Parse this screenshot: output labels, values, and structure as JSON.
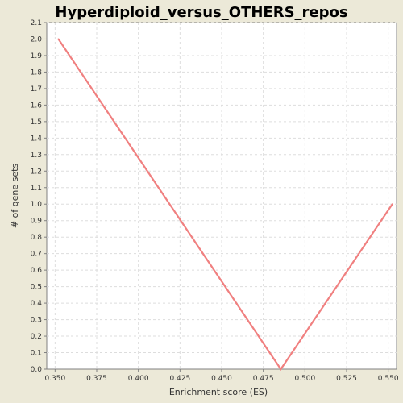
{
  "chart_data": {
    "type": "line",
    "title": "Hyperdiploid_versus_OTHERS_repos",
    "xlabel": "Enrichment score (ES)",
    "ylabel": "# of gene sets",
    "xlim": [
      0.345,
      0.555
    ],
    "ylim": [
      0.0,
      2.1
    ],
    "x_ticks": [
      "0.350",
      "0.375",
      "0.400",
      "0.425",
      "0.450",
      "0.475",
      "0.500",
      "0.525",
      "0.550"
    ],
    "x_tick_values": [
      0.35,
      0.375,
      0.4,
      0.425,
      0.45,
      0.475,
      0.5,
      0.525,
      0.55
    ],
    "y_ticks": [
      "0.0",
      "0.1",
      "0.2",
      "0.3",
      "0.4",
      "0.5",
      "0.6",
      "0.7",
      "0.8",
      "0.9",
      "1.0",
      "1.1",
      "1.2",
      "1.3",
      "1.4",
      "1.5",
      "1.6",
      "1.7",
      "1.8",
      "1.9",
      "2.0",
      "2.1"
    ],
    "y_tick_values": [
      0.0,
      0.1,
      0.2,
      0.3,
      0.4,
      0.5,
      0.6,
      0.7,
      0.8,
      0.9,
      1.0,
      1.1,
      1.2,
      1.3,
      1.4,
      1.5,
      1.6,
      1.7,
      1.8,
      1.9,
      2.0,
      2.1
    ],
    "grid": true,
    "legend": "none",
    "series": [
      {
        "x": [
          0.352,
          0.4855,
          0.5525
        ],
        "y": [
          2.0,
          0.0,
          1.0
        ],
        "color": "#F08080"
      }
    ]
  },
  "colors": {
    "background": "#ECE9D8",
    "plot_background": "#FFFFFF",
    "grid": "#DDDDDD",
    "axis": "#808080"
  }
}
